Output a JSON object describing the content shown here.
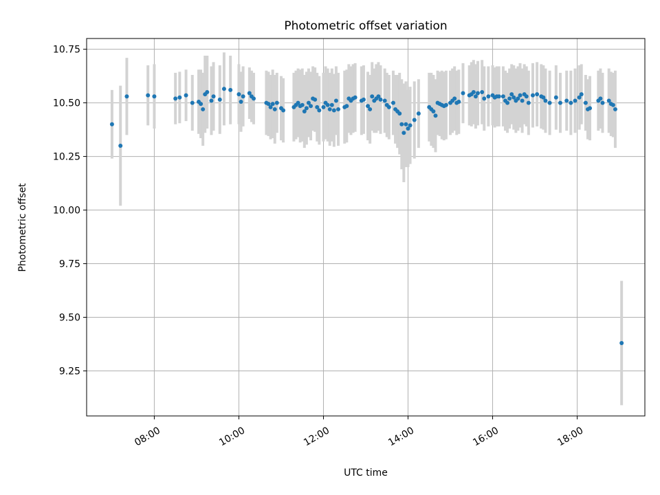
{
  "chart_data": {
    "type": "scatter",
    "title": "Photometric offset variation",
    "xlabel": "UTC time",
    "ylabel": "Photometric offset",
    "grid": true,
    "xlim_hours": [
      6.4,
      19.6
    ],
    "ylim": [
      9.04,
      10.8
    ],
    "x_ticks": [
      {
        "value": 8,
        "label": "08:00"
      },
      {
        "value": 10,
        "label": "10:00"
      },
      {
        "value": 12,
        "label": "12:00"
      },
      {
        "value": 14,
        "label": "14:00"
      },
      {
        "value": 16,
        "label": "16:00"
      },
      {
        "value": 18,
        "label": "18:00"
      }
    ],
    "y_ticks": [
      {
        "value": 9.25,
        "label": "9.25"
      },
      {
        "value": 9.5,
        "label": "9.50"
      },
      {
        "value": 9.75,
        "label": "9.75"
      },
      {
        "value": 10.0,
        "label": "10.00"
      },
      {
        "value": 10.25,
        "label": "10.25"
      },
      {
        "value": 10.5,
        "label": "10.50"
      },
      {
        "value": 10.75,
        "label": "10.75"
      }
    ],
    "marker_color": "#1f77b4",
    "errorbar_color": "#d3d3d3",
    "series": [
      {
        "name": "offset",
        "points": [
          [
            7.0,
            10.4,
            0.16
          ],
          [
            7.2,
            10.3,
            0.28
          ],
          [
            7.35,
            10.53,
            0.18
          ],
          [
            7.85,
            10.535,
            0.14
          ],
          [
            8.0,
            10.53,
            0.15
          ],
          [
            8.5,
            10.52,
            0.12
          ],
          [
            8.6,
            10.525,
            0.12
          ],
          [
            8.75,
            10.535,
            0.12
          ],
          [
            8.9,
            10.5,
            0.13
          ],
          [
            9.05,
            10.505,
            0.15
          ],
          [
            9.1,
            10.495,
            0.16
          ],
          [
            9.15,
            10.47,
            0.17
          ],
          [
            9.2,
            10.54,
            0.18
          ],
          [
            9.25,
            10.55,
            0.17
          ],
          [
            9.35,
            10.51,
            0.16
          ],
          [
            9.4,
            10.53,
            0.16
          ],
          [
            9.55,
            10.515,
            0.16
          ],
          [
            9.65,
            10.565,
            0.17
          ],
          [
            9.8,
            10.56,
            0.16
          ],
          [
            10.0,
            10.54,
            0.14
          ],
          [
            10.05,
            10.505,
            0.14
          ],
          [
            10.1,
            10.53,
            0.14
          ],
          [
            10.25,
            10.545,
            0.12
          ],
          [
            10.3,
            10.53,
            0.12
          ],
          [
            10.35,
            10.52,
            0.12
          ],
          [
            10.65,
            10.5,
            0.15
          ],
          [
            10.7,
            10.495,
            0.15
          ],
          [
            10.75,
            10.48,
            0.15
          ],
          [
            10.8,
            10.495,
            0.16
          ],
          [
            10.85,
            10.47,
            0.16
          ],
          [
            10.9,
            10.5,
            0.14
          ],
          [
            11.0,
            10.475,
            0.15
          ],
          [
            11.05,
            10.465,
            0.15
          ],
          [
            11.3,
            10.48,
            0.16
          ],
          [
            11.35,
            10.49,
            0.16
          ],
          [
            11.4,
            10.5,
            0.16
          ],
          [
            11.45,
            10.485,
            0.17
          ],
          [
            11.5,
            10.49,
            0.17
          ],
          [
            11.55,
            10.46,
            0.17
          ],
          [
            11.6,
            10.475,
            0.17
          ],
          [
            11.65,
            10.5,
            0.16
          ],
          [
            11.7,
            10.485,
            0.16
          ],
          [
            11.75,
            10.52,
            0.15
          ],
          [
            11.8,
            10.515,
            0.15
          ],
          [
            11.85,
            10.48,
            0.16
          ],
          [
            11.9,
            10.465,
            0.16
          ],
          [
            12.0,
            10.48,
            0.16
          ],
          [
            12.05,
            10.5,
            0.17
          ],
          [
            12.1,
            10.49,
            0.17
          ],
          [
            12.15,
            10.47,
            0.17
          ],
          [
            12.2,
            10.49,
            0.17
          ],
          [
            12.25,
            10.465,
            0.17
          ],
          [
            12.3,
            10.51,
            0.16
          ],
          [
            12.35,
            10.47,
            0.17
          ],
          [
            12.5,
            10.48,
            0.17
          ],
          [
            12.55,
            10.485,
            0.17
          ],
          [
            12.6,
            10.52,
            0.16
          ],
          [
            12.65,
            10.51,
            0.16
          ],
          [
            12.7,
            10.52,
            0.16
          ],
          [
            12.75,
            10.525,
            0.16
          ],
          [
            12.9,
            10.51,
            0.16
          ],
          [
            12.95,
            10.515,
            0.16
          ],
          [
            13.05,
            10.485,
            0.16
          ],
          [
            13.1,
            10.47,
            0.16
          ],
          [
            13.15,
            10.53,
            0.16
          ],
          [
            13.2,
            10.51,
            0.15
          ],
          [
            13.25,
            10.52,
            0.16
          ],
          [
            13.3,
            10.53,
            0.16
          ],
          [
            13.35,
            10.515,
            0.16
          ],
          [
            13.45,
            10.51,
            0.15
          ],
          [
            13.5,
            10.49,
            0.15
          ],
          [
            13.55,
            10.48,
            0.15
          ],
          [
            13.65,
            10.5,
            0.15
          ],
          [
            13.7,
            10.47,
            0.16
          ],
          [
            13.75,
            10.46,
            0.17
          ],
          [
            13.8,
            10.45,
            0.19
          ],
          [
            13.85,
            10.4,
            0.21
          ],
          [
            13.9,
            10.36,
            0.23
          ],
          [
            13.95,
            10.4,
            0.2
          ],
          [
            14.0,
            10.38,
            0.18
          ],
          [
            14.05,
            10.395,
            0.18
          ],
          [
            14.15,
            10.42,
            0.18
          ],
          [
            14.25,
            10.45,
            0.16
          ],
          [
            14.5,
            10.48,
            0.16
          ],
          [
            14.55,
            10.47,
            0.17
          ],
          [
            14.6,
            10.46,
            0.17
          ],
          [
            14.65,
            10.44,
            0.17
          ],
          [
            14.7,
            10.5,
            0.15
          ],
          [
            14.75,
            10.495,
            0.15
          ],
          [
            14.8,
            10.49,
            0.16
          ],
          [
            14.85,
            10.485,
            0.16
          ],
          [
            14.9,
            10.49,
            0.16
          ],
          [
            15.0,
            10.5,
            0.15
          ],
          [
            15.05,
            10.51,
            0.15
          ],
          [
            15.1,
            10.52,
            0.15
          ],
          [
            15.15,
            10.5,
            0.15
          ],
          [
            15.2,
            10.505,
            0.15
          ],
          [
            15.3,
            10.545,
            0.14
          ],
          [
            15.45,
            10.535,
            0.14
          ],
          [
            15.5,
            10.54,
            0.15
          ],
          [
            15.55,
            10.55,
            0.15
          ],
          [
            15.6,
            10.53,
            0.15
          ],
          [
            15.65,
            10.545,
            0.15
          ],
          [
            15.75,
            10.55,
            0.15
          ],
          [
            15.8,
            10.52,
            0.15
          ],
          [
            15.9,
            10.53,
            0.14
          ],
          [
            16.0,
            10.535,
            0.14
          ],
          [
            16.05,
            10.525,
            0.14
          ],
          [
            16.1,
            10.53,
            0.14
          ],
          [
            16.15,
            10.53,
            0.14
          ],
          [
            16.25,
            10.53,
            0.14
          ],
          [
            16.3,
            10.51,
            0.14
          ],
          [
            16.35,
            10.5,
            0.14
          ],
          [
            16.4,
            10.52,
            0.14
          ],
          [
            16.45,
            10.54,
            0.14
          ],
          [
            16.5,
            10.525,
            0.15
          ],
          [
            16.55,
            10.51,
            0.15
          ],
          [
            16.6,
            10.52,
            0.15
          ],
          [
            16.65,
            10.535,
            0.15
          ],
          [
            16.7,
            10.51,
            0.15
          ],
          [
            16.75,
            10.54,
            0.14
          ],
          [
            16.8,
            10.53,
            0.14
          ],
          [
            16.85,
            10.5,
            0.15
          ],
          [
            16.95,
            10.535,
            0.15
          ],
          [
            17.05,
            10.54,
            0.15
          ],
          [
            17.15,
            10.53,
            0.15
          ],
          [
            17.2,
            10.525,
            0.15
          ],
          [
            17.25,
            10.51,
            0.15
          ],
          [
            17.35,
            10.5,
            0.15
          ],
          [
            17.5,
            10.525,
            0.15
          ],
          [
            17.6,
            10.5,
            0.14
          ],
          [
            17.75,
            10.51,
            0.14
          ],
          [
            17.85,
            10.5,
            0.15
          ],
          [
            17.95,
            10.51,
            0.15
          ],
          [
            18.05,
            10.525,
            0.15
          ],
          [
            18.1,
            10.54,
            0.14
          ],
          [
            18.2,
            10.5,
            0.13
          ],
          [
            18.25,
            10.47,
            0.14
          ],
          [
            18.3,
            10.475,
            0.15
          ],
          [
            18.5,
            10.51,
            0.14
          ],
          [
            18.55,
            10.52,
            0.14
          ],
          [
            18.6,
            10.5,
            0.14
          ],
          [
            18.75,
            10.51,
            0.15
          ],
          [
            18.8,
            10.495,
            0.15
          ],
          [
            18.85,
            10.49,
            0.15
          ],
          [
            18.9,
            10.47,
            0.18
          ],
          [
            19.05,
            9.38,
            0.29
          ]
        ]
      }
    ]
  }
}
